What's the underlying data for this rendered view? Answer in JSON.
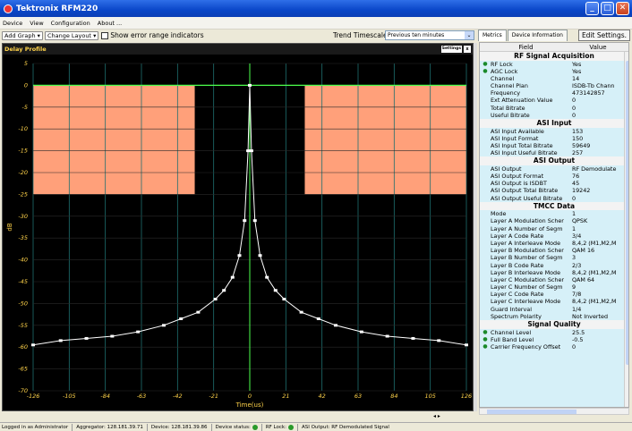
{
  "window": {
    "title": "Tektronix RFM220"
  },
  "menu": [
    "Device",
    "View",
    "Configuration",
    "About ..."
  ],
  "toolbar": {
    "add_graph": "Add Graph",
    "change_layout": "Change Layout",
    "error_range_label": "Show error range indicators",
    "trend_label": "Trend Timescale:",
    "trend_value": "Previous ten minutes"
  },
  "panel": {
    "title": "Delay Profile",
    "settings": "Settings",
    "close": "x"
  },
  "chart_data": {
    "type": "line",
    "title": "Delay Profile",
    "xlabel": "Time(us)",
    "ylabel": "dB",
    "xlim": [
      -126,
      126
    ],
    "ylim": [
      -70,
      5
    ],
    "xticks": [
      -126,
      -105,
      -84,
      -63,
      -42,
      -21,
      0,
      21,
      42,
      63,
      84,
      105,
      126
    ],
    "yticks": [
      5,
      0,
      -5,
      -10,
      -15,
      -20,
      -25,
      -30,
      -35,
      -40,
      -45,
      -50,
      -55,
      -60,
      -65,
      -70
    ],
    "mask_regions": [
      {
        "x": [
          -126,
          -32
        ],
        "y": [
          -25,
          0
        ]
      },
      {
        "x": [
          32,
          126
        ],
        "y": [
          -25,
          0
        ]
      }
    ],
    "series": [
      {
        "x": [
          -126,
          -110,
          -95,
          -80,
          -65,
          -50,
          -40,
          -30,
          -20,
          -15,
          -10,
          -6,
          -3,
          -1,
          0,
          1,
          3,
          6,
          10,
          15,
          20,
          30,
          40,
          50,
          65,
          80,
          95,
          110,
          126
        ],
        "y": [
          -59.5,
          -58.5,
          -58,
          -57.5,
          -56.5,
          -55,
          -53.5,
          -52,
          -49,
          -47,
          -44,
          -39,
          -31,
          -15,
          0,
          -15,
          -31,
          -39,
          -44,
          -47,
          -49,
          -52,
          -53.5,
          -55,
          -56.5,
          -57.5,
          -58,
          -58.5,
          -59.5
        ]
      }
    ]
  },
  "pager": "◂ ▸",
  "right": {
    "tabs": [
      "Metrics",
      "Device Information"
    ],
    "edit_button": "Edit Settings.",
    "col_field": "Field",
    "col_value": "Value",
    "sections": [
      {
        "title": "RF Signal Acquisition",
        "rows": [
          {
            "field": "RF Lock",
            "value": "Yes",
            "dot": true
          },
          {
            "field": "AGC Lock",
            "value": "Yes",
            "dot": true
          },
          {
            "field": "Channel",
            "value": "14"
          },
          {
            "field": "Channel Plan",
            "value": "ISDB-Tb Chann"
          },
          {
            "field": "Frequency",
            "value": "473142857"
          },
          {
            "field": "Ext Attenuation Value",
            "value": "0"
          },
          {
            "field": "Total Bitrate",
            "value": "0"
          },
          {
            "field": "Useful Bitrate",
            "value": "0"
          }
        ]
      },
      {
        "title": "ASI Input",
        "rows": [
          {
            "field": "ASI Input Available",
            "value": "153"
          },
          {
            "field": "ASI Input Format",
            "value": "150"
          },
          {
            "field": "ASI Input Total Bitrate",
            "value": "59649"
          },
          {
            "field": "ASI Input Useful Bitrate",
            "value": "257"
          }
        ]
      },
      {
        "title": "ASI Output",
        "rows": [
          {
            "field": "ASI Output",
            "value": "RF Demodulate"
          },
          {
            "field": "ASI Output Format",
            "value": "76"
          },
          {
            "field": "ASI Output is ISDBT",
            "value": "45"
          },
          {
            "field": "ASI Output Total Bitrate",
            "value": "19242"
          },
          {
            "field": "ASI Output Useful Bitrate",
            "value": "0"
          }
        ]
      },
      {
        "title": "TMCC Data",
        "rows": [
          {
            "field": "Mode",
            "value": "1"
          },
          {
            "field": "Layer A Modulation Scher",
            "value": "QPSK"
          },
          {
            "field": "Layer A Number of Segm",
            "value": "1"
          },
          {
            "field": "Layer A Code Rate",
            "value": "3/4"
          },
          {
            "field": "Layer A Interleave Mode",
            "value": "8,4,2 (M1,M2,M"
          },
          {
            "field": "Layer B Modulation Scher",
            "value": "QAM 16"
          },
          {
            "field": "Layer B Number of Segm",
            "value": "3"
          },
          {
            "field": "Layer B Code Rate",
            "value": "2/3"
          },
          {
            "field": "Layer B Interleave Mode",
            "value": "8,4,2 (M1,M2,M"
          },
          {
            "field": "Layer C Modulation Scher",
            "value": "QAM 64"
          },
          {
            "field": "Layer C Number of Segm",
            "value": "9"
          },
          {
            "field": "Layer C Code Rate",
            "value": "7/8"
          },
          {
            "field": "Layer C Interleave Mode",
            "value": "8,4,2 (M1,M2,M"
          },
          {
            "field": "Guard Interval",
            "value": "1/4"
          },
          {
            "field": "Spectrum Polarity",
            "value": "Not Inverted"
          }
        ]
      },
      {
        "title": "Signal Quality",
        "rows": [
          {
            "field": "Channel Level",
            "value": "25.5",
            "dot": true
          },
          {
            "field": "Full Band Level",
            "value": "-0.5",
            "dot": true
          },
          {
            "field": "Carrier Frequency Offset",
            "value": "0",
            "dot": true
          }
        ]
      }
    ]
  },
  "status": {
    "logged_in": "Logged in as Administrator",
    "aggregator": "Aggregator: 128.181.39.71",
    "device": "Device: 128.181.39.86",
    "device_status": "Device status:",
    "rf_lock": "RF Lock:",
    "asi_output": "ASI Output: RF Demodulated Signal"
  }
}
